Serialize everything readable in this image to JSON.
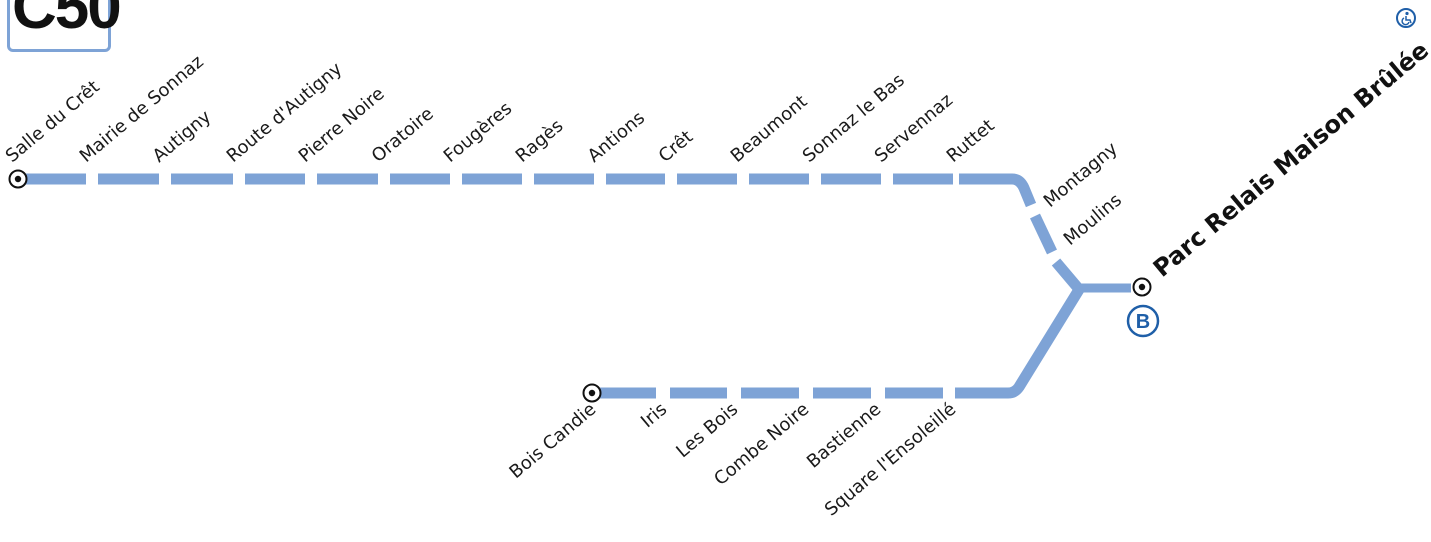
{
  "line": {
    "badge": "C50",
    "color": "#7ea3d6"
  },
  "terminus": {
    "name": "Parc Relais Maison Brûlée",
    "connection": "B",
    "accessibility_icon": "wheelchair-icon",
    "connection_color": "#1f5fa8"
  },
  "north_branch": {
    "stops": [
      "Salle du Crêt",
      "Mairie de Sonnaz",
      "Autigny",
      "Route d'Autigny",
      "Pierre Noire",
      "Oratoire",
      "Fougères",
      "Ragès",
      "Antions",
      "Crêt",
      "Beaumont",
      "Sonnaz le Bas",
      "Servennaz",
      "Ruttet"
    ]
  },
  "trunk": {
    "stops": [
      "Montagny",
      "Moulins"
    ]
  },
  "south_branch": {
    "stops": [
      "Bois Candie",
      "Iris",
      "Les Bois",
      "Combe Noire",
      "Bastienne",
      "Square l'Ensoleillé"
    ]
  }
}
